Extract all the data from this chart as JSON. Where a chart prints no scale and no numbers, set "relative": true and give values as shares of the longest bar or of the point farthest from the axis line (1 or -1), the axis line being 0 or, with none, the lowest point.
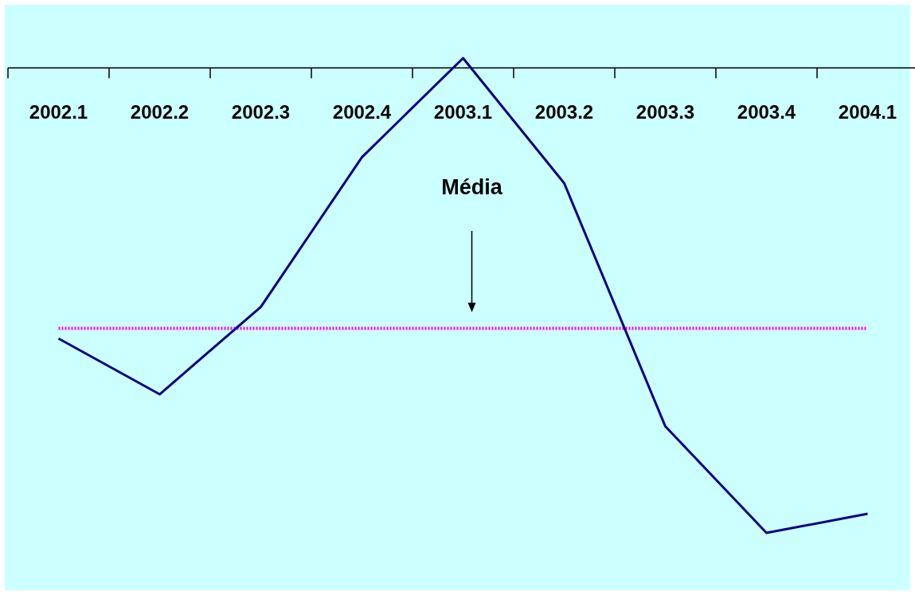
{
  "chart_data": {
    "type": "line",
    "relative": true,
    "categories": [
      "2002.1",
      "2002.2",
      "2002.3",
      "2002.4",
      "2003.1",
      "2003.2",
      "2003.3",
      "2003.4",
      "2004.1"
    ],
    "series": [
      {
        "color": "#000080",
        "values": [
          -0.582,
          -0.702,
          -0.514,
          -0.192,
          0.021,
          -0.248,
          -0.771,
          -1,
          -0.959
        ]
      }
    ],
    "ref_lines": [
      {
        "axis": "y",
        "value": -0.56,
        "color": "#ff00ff",
        "line_style": "dotted"
      }
    ],
    "annotations": [
      "Média"
    ]
  }
}
